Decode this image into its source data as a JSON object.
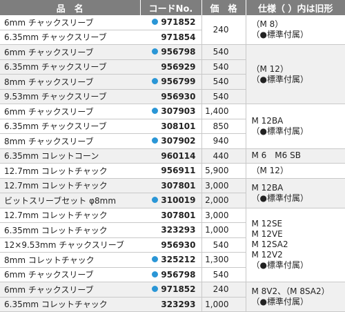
{
  "headers": {
    "name": "品　名",
    "code": "コードNo.",
    "price": "価　格",
    "spec": "仕様（ ）内は旧形"
  },
  "colors": {
    "dot": "#2a96d6",
    "header_bg": "#7e7e7e"
  },
  "rows": [
    {
      "name": "6mm チャックスリーブ",
      "code": "971852",
      "dot": true,
      "price": "",
      "spec": [
        "（M 8）",
        "（●標準付属）"
      ]
    },
    {
      "name": "6.35mm チャックスリーブ",
      "code": "971854",
      "dot": false
    },
    {
      "name": "6mm チャックスリーブ",
      "code": "956798",
      "dot": true,
      "price": "540",
      "spec": [
        "（M 12）",
        "（●標準付属）"
      ]
    },
    {
      "name": "6.35mm チャックスリーブ",
      "code": "956929",
      "dot": false,
      "price": "540"
    },
    {
      "name": "8mm チャックスリーブ",
      "code": "956799",
      "dot": true,
      "price": "540"
    },
    {
      "name": "9.53mm チャックスリーブ",
      "code": "956930",
      "dot": false,
      "price": "540"
    },
    {
      "name": "6mm チャックスリーブ",
      "code": "307903",
      "dot": true,
      "price": "1,400",
      "spec": [
        "M 12BA",
        "（●標準付属）"
      ]
    },
    {
      "name": "6.35mm チャックスリーブ",
      "code": "308101",
      "dot": false,
      "price": "850"
    },
    {
      "name": "8mm チャックスリーブ",
      "code": "307902",
      "dot": true,
      "price": "940"
    },
    {
      "name": "6.35mm コレットコーン",
      "code": "960114",
      "dot": false,
      "price": "440",
      "spec": [
        "M 6　M6 SB"
      ]
    },
    {
      "name": "12.7mm コレットチャック",
      "code": "956911",
      "dot": false,
      "price": "5,900",
      "spec": [
        "（M 12）"
      ]
    },
    {
      "name": "12.7mm コレットチャック",
      "code": "307801",
      "dot": false,
      "price": "3,000",
      "spec": [
        "M 12BA",
        "（●標準付属）"
      ]
    },
    {
      "name": "ビットスリーブセット φ8mm",
      "code": "310019",
      "dot": true,
      "price": "2,000"
    },
    {
      "name": "12.7mm コレットチャック",
      "code": "307801",
      "dot": false,
      "price": "3,000",
      "spec": [
        "M 12SE",
        "M 12VE",
        "M 12SA2",
        "M 12V2",
        "（●標準付属）"
      ]
    },
    {
      "name": "6.35mm コレットチャック",
      "code": "323293",
      "dot": false,
      "price": "1,000"
    },
    {
      "name": "12×9.53mm チャックスリーブ",
      "code": "956930",
      "dot": false,
      "price": "540"
    },
    {
      "name": "8mm コレットチャック",
      "code": "325212",
      "dot": true,
      "price": "1,300"
    },
    {
      "name": "6mm チャックスリーブ",
      "code": "956798",
      "dot": true,
      "price": "540"
    },
    {
      "name": "6mm チャックスリーブ",
      "code": "971852",
      "dot": true,
      "price": "240",
      "spec": [
        "M 8V2、（M 8SA2）",
        "（●標準付属）"
      ]
    },
    {
      "name": "6.35mm コレットチャック",
      "code": "323293",
      "dot": false,
      "price": "1,000"
    }
  ],
  "merged_price_0": "240"
}
